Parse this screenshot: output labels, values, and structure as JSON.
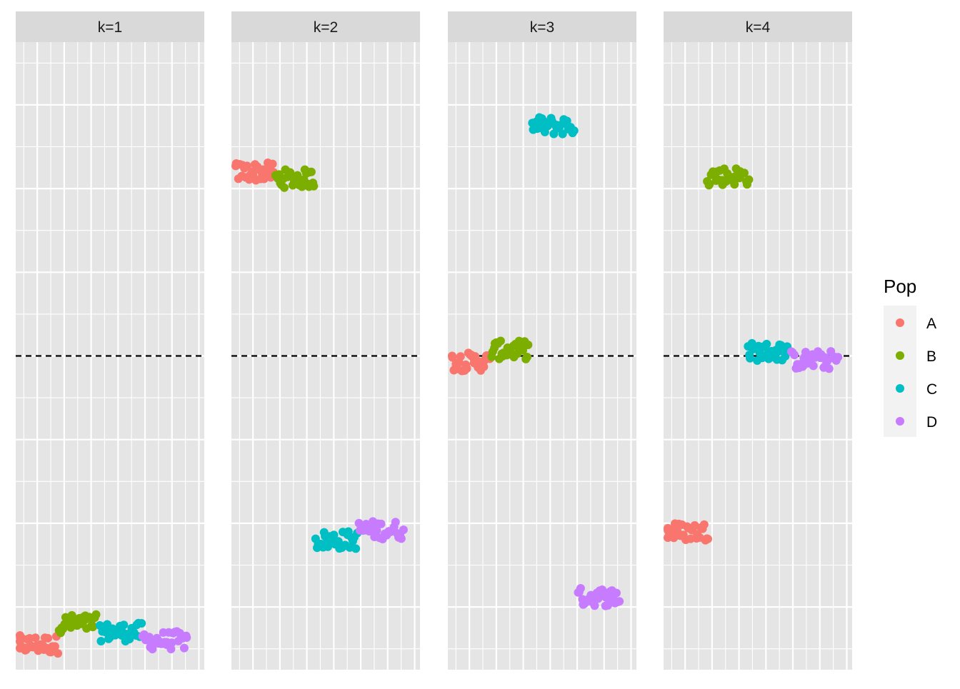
{
  "chart_data": {
    "type": "scatter",
    "facet_labels": [
      "k=1",
      "k=2",
      "k=3",
      "k=4"
    ],
    "legend": {
      "title": "Pop",
      "placement": "right",
      "items": [
        {
          "label": "A",
          "color": "#F8766D"
        },
        {
          "label": "B",
          "color": "#7CAE00"
        },
        {
          "label": "C",
          "color": "#00BFC4"
        },
        {
          "label": "D",
          "color": "#C77CFF"
        }
      ]
    },
    "ylim": [
      -3.75,
      3.75
    ],
    "xlim": [
      0.2,
      7.2
    ],
    "reference_line": {
      "y": 0,
      "style": "dashed",
      "color": "#000000"
    },
    "grid": true,
    "panel_background": "#E5E5E5",
    "strip_background": "#D9D9D9",
    "clusters": [
      {
        "panel": 0,
        "pop": "A",
        "x": [
          0.2,
          1.8
        ],
        "y_center": -3.45,
        "n": 30
      },
      {
        "panel": 0,
        "pop": "B",
        "x": [
          1.8,
          3.2
        ],
        "y_center": -3.2,
        "n": 30
      },
      {
        "panel": 0,
        "pop": "C",
        "x": [
          3.3,
          4.9
        ],
        "y_center": -3.3,
        "n": 30
      },
      {
        "panel": 0,
        "pop": "D",
        "x": [
          4.9,
          6.6
        ],
        "y_center": -3.4,
        "n": 30
      },
      {
        "panel": 1,
        "pop": "A",
        "x": [
          0.3,
          1.8
        ],
        "y_center": 2.2,
        "n": 30
      },
      {
        "panel": 1,
        "pop": "B",
        "x": [
          1.8,
          3.3
        ],
        "y_center": 2.12,
        "n": 30
      },
      {
        "panel": 1,
        "pop": "C",
        "x": [
          3.3,
          4.9
        ],
        "y_center": -2.2,
        "n": 30
      },
      {
        "panel": 1,
        "pop": "D",
        "x": [
          4.9,
          6.6
        ],
        "y_center": -2.08,
        "n": 30
      },
      {
        "panel": 2,
        "pop": "A",
        "x": [
          0.3,
          1.8
        ],
        "y_center": -0.07,
        "n": 30
      },
      {
        "panel": 2,
        "pop": "B",
        "x": [
          1.8,
          3.2
        ],
        "y_center": 0.07,
        "n": 30
      },
      {
        "panel": 2,
        "pop": "C",
        "x": [
          3.3,
          4.9
        ],
        "y_center": 2.75,
        "n": 30
      },
      {
        "panel": 2,
        "pop": "D",
        "x": [
          5.0,
          6.6
        ],
        "y_center": -2.88,
        "n": 30
      },
      {
        "panel": 3,
        "pop": "A",
        "x": [
          0.2,
          1.9
        ],
        "y_center": -2.1,
        "n": 30
      },
      {
        "panel": 3,
        "pop": "B",
        "x": [
          1.8,
          3.4
        ],
        "y_center": 2.15,
        "n": 30
      },
      {
        "panel": 3,
        "pop": "C",
        "x": [
          3.3,
          4.8
        ],
        "y_center": 0.05,
        "n": 30
      },
      {
        "panel": 3,
        "pop": "D",
        "x": [
          4.9,
          6.7
        ],
        "y_center": -0.05,
        "n": 30
      }
    ]
  }
}
